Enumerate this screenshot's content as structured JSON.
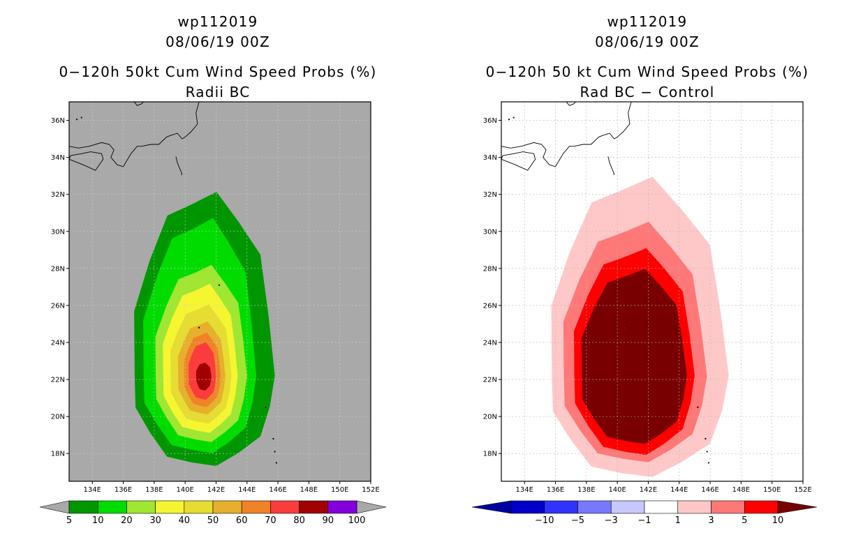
{
  "left_panel": {
    "title_line1": "wp112019",
    "title_line2": "08/06/19 00Z",
    "title_line3": "0−120h 50kt Cum Wind Speed Probs (%)",
    "title_line4": "Radii BC",
    "background_color": "#a9a9a9",
    "colorbar_labels": [
      "5",
      "10",
      "20",
      "30",
      "40",
      "50",
      "60",
      "70",
      "80",
      "90",
      "100"
    ],
    "colorbar_colors": [
      "#009600",
      "#00dc00",
      "#a0e632",
      "#f5f532",
      "#e6dc32",
      "#e6af2d",
      "#f08228",
      "#fa3c3c",
      "#a00000",
      "#8200dc"
    ],
    "colorbar_edge_color": "#a9a9a9"
  },
  "right_panel": {
    "title_line1": "wp112019",
    "title_line2": "08/06/19 00Z",
    "title_line3": "0−120h 50 kt Cum Wind Speed Probs (%)",
    "title_line4": "Rad BC − Control",
    "background_color": "#ffffff",
    "colorbar_labels": [
      "−10",
      "−5",
      "−3",
      "−1",
      "1",
      "3",
      "5",
      "10"
    ],
    "colorbar_colors": [
      "#0000c8",
      "#3232ff",
      "#7878ff",
      "#c8c8ff",
      "#ffffff",
      "#ffc8c8",
      "#ff7878",
      "#ff0000"
    ],
    "colorbar_low_color": "#0000a0",
    "colorbar_high_color": "#780000"
  },
  "axes": {
    "lat_labels": [
      "36N",
      "34N",
      "32N",
      "30N",
      "28N",
      "26N",
      "24N",
      "22N",
      "20N",
      "18N"
    ],
    "lon_labels": [
      "134E",
      "136E",
      "138E",
      "140E",
      "142E",
      "144E",
      "146E",
      "148E",
      "150E",
      "152E"
    ]
  },
  "map_data": {
    "lon_range": [
      132.5,
      152.0
    ],
    "lat_range": [
      16.5,
      37.0
    ],
    "storm_center": {
      "lon": 141.2,
      "lat": 22.2
    },
    "left_contours": [
      {
        "level": 5,
        "color": "#009600",
        "w": 4.6,
        "s": 4.9,
        "e": 4.6,
        "n": 9.8
      },
      {
        "level": 10,
        "color": "#00dc00",
        "w": 4.0,
        "s": 4.2,
        "e": 3.4,
        "n": 8.4
      },
      {
        "level": 20,
        "color": "#a0e632",
        "w": 3.2,
        "s": 3.6,
        "e": 2.8,
        "n": 5.9
      },
      {
        "level": 30,
        "color": "#f5f532",
        "w": 2.7,
        "s": 3.1,
        "e": 2.2,
        "n": 4.9
      },
      {
        "level": 40,
        "color": "#e6dc32",
        "w": 2.2,
        "s": 2.6,
        "e": 1.8,
        "n": 3.8
      },
      {
        "level": 50,
        "color": "#e6af2d",
        "w": 1.7,
        "s": 2.1,
        "e": 1.4,
        "n": 2.9
      },
      {
        "level": 60,
        "color": "#f08228",
        "w": 1.3,
        "s": 1.7,
        "e": 1.1,
        "n": 2.3
      },
      {
        "level": 70,
        "color": "#fa3c3c",
        "w": 1.0,
        "s": 1.3,
        "e": 0.8,
        "n": 1.8
      },
      {
        "level": 80,
        "color": "#a00000",
        "w": 0.5,
        "s": 0.8,
        "e": 0.5,
        "n": 0.7
      }
    ],
    "right_contours": [
      {
        "level": 1,
        "color": "#ffc8c8",
        "w": 5.6,
        "s": 5.5,
        "e": 6.0,
        "n": 10.6
      },
      {
        "level": 3,
        "color": "#ff7878",
        "w": 4.8,
        "s": 4.7,
        "e": 4.6,
        "n": 8.2
      },
      {
        "level": 5,
        "color": "#ff0000",
        "w": 4.1,
        "s": 4.3,
        "e": 3.8,
        "n": 6.8
      },
      {
        "level": 10,
        "color": "#780000",
        "w": 3.6,
        "s": 3.7,
        "e": 3.3,
        "n": 5.7
      }
    ]
  }
}
